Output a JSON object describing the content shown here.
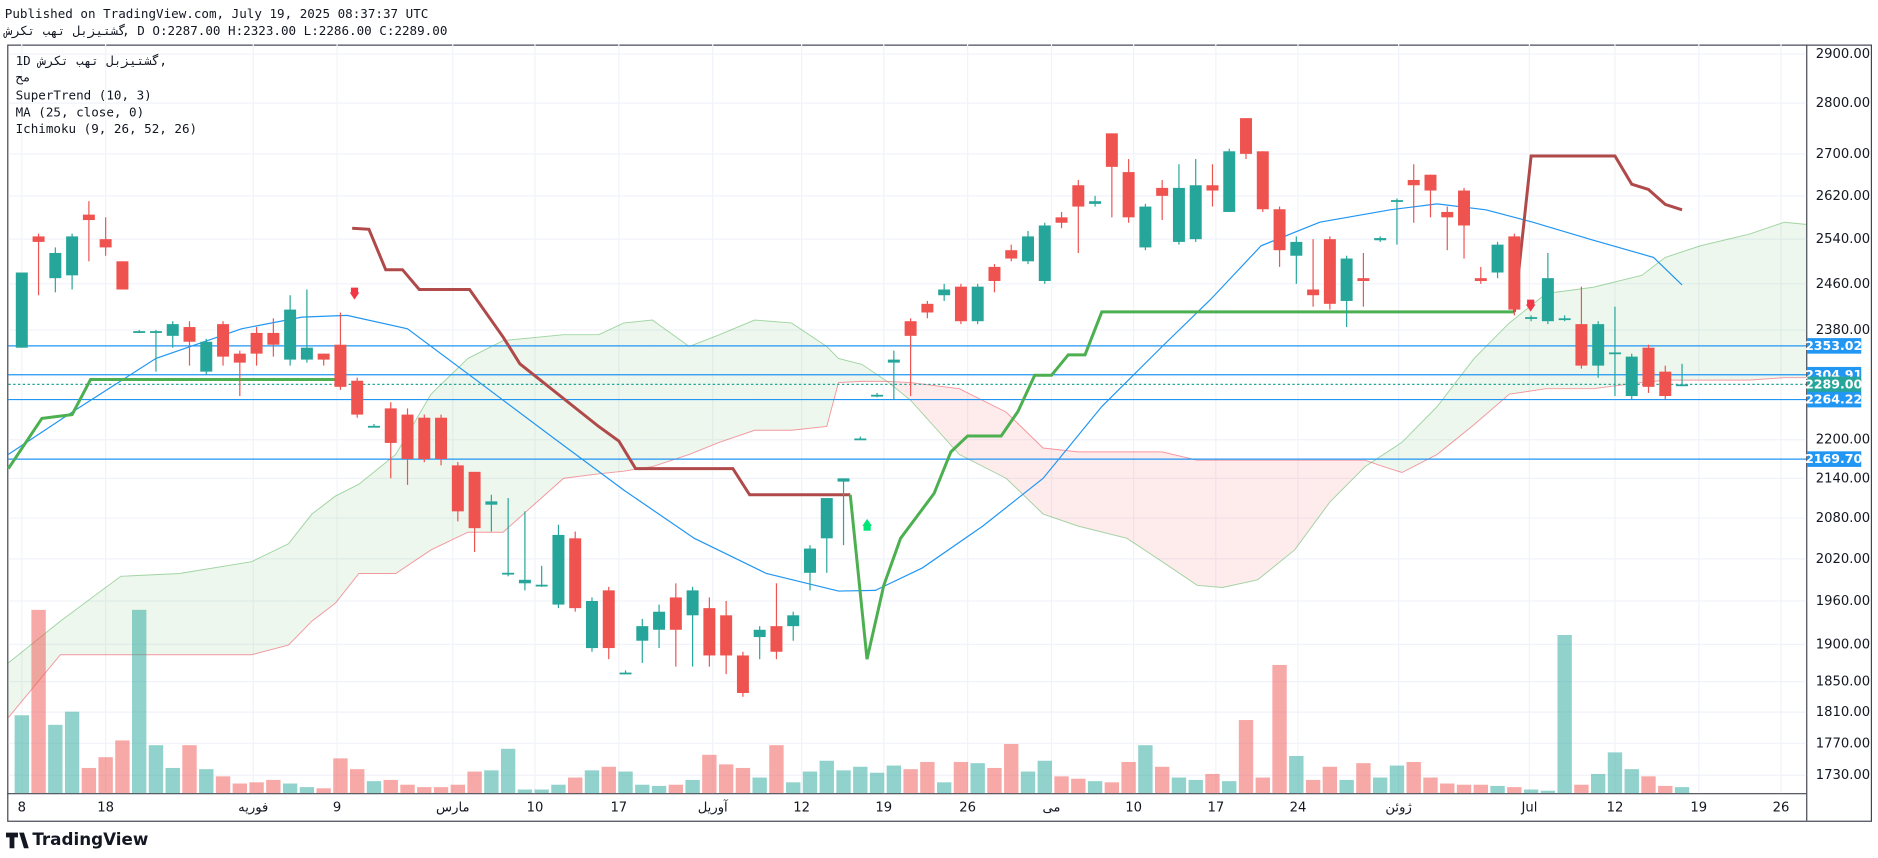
{
  "header": {
    "published": "Published on TradingView.com, July 19, 2025 08:37:37 UTC",
    "symbol": "گشتیزبل تهب تکرش",
    "ohlc": ", D O:2287.00 H:2323.00 L:2286.00 C:2289.00"
  },
  "legend": [
    "1D",
    "گشتیزبل تهب تکرش,",
    "مح",
    "SuperTrend (10, 3)",
    "MA (25, close, 0)",
    "Ichimoku (9, 26, 52, 26)"
  ],
  "footer": "TradingView",
  "chart_data": {
    "type": "candlestick",
    "log_scale": true,
    "grid": true,
    "up_color": "#26a69a",
    "down_color": "#ef5350",
    "xlim": [
      -0.8,
      106.4
    ],
    "ylim": [
      1708,
      2920
    ],
    "xticks": [
      {
        "value": 0,
        "label": "8"
      },
      {
        "value": 5,
        "label": "18"
      },
      {
        "value": 13.8,
        "label": "فوریه"
      },
      {
        "value": 18.8,
        "label": "9"
      },
      {
        "value": 25.7,
        "label": "مارس"
      },
      {
        "value": 30.6,
        "label": "10"
      },
      {
        "value": 35.6,
        "label": "17"
      },
      {
        "value": 41.2,
        "label": "آوریل"
      },
      {
        "value": 46.5,
        "label": "12"
      },
      {
        "value": 51.4,
        "label": "19"
      },
      {
        "value": 56.4,
        "label": "26"
      },
      {
        "value": 61.4,
        "label": "می"
      },
      {
        "value": 66.3,
        "label": "10"
      },
      {
        "value": 71.2,
        "label": "17"
      },
      {
        "value": 76.1,
        "label": "24"
      },
      {
        "value": 82.1,
        "label": "ژوئن"
      },
      {
        "value": 89.9,
        "label": "Jul"
      },
      {
        "value": 95,
        "label": "12"
      },
      {
        "value": 100,
        "label": "19"
      },
      {
        "value": 104.9,
        "label": "26"
      }
    ],
    "yticks": [
      {
        "value": 2900,
        "label": "2900.00"
      },
      {
        "value": 2800,
        "label": "2800.00"
      },
      {
        "value": 2700,
        "label": "2700.00"
      },
      {
        "value": 2620,
        "label": "2620.00"
      },
      {
        "value": 2540,
        "label": "2540.00"
      },
      {
        "value": 2460,
        "label": "2460.00"
      },
      {
        "value": 2380,
        "label": "2380.00"
      },
      {
        "value": 2200,
        "label": "2200.00"
      },
      {
        "value": 2140,
        "label": "2140.00"
      },
      {
        "value": 2080,
        "label": "2080.00"
      },
      {
        "value": 2020,
        "label": "2020.00"
      },
      {
        "value": 1960,
        "label": "1960.00"
      },
      {
        "value": 1900,
        "label": "1900.00"
      },
      {
        "value": 1850,
        "label": "1850.00"
      },
      {
        "value": 1810,
        "label": "1810.00"
      },
      {
        "value": 1770,
        "label": "1770.00"
      },
      {
        "value": 1730,
        "label": "1730.00"
      }
    ],
    "open": [
      2350,
      2545,
      2470,
      2475,
      2585,
      2540,
      2500,
      2375,
      2375,
      2370,
      2385,
      2310,
      2390,
      2340,
      2375,
      2375,
      2330,
      2330,
      2340,
      2355,
      2295,
      2220,
      2250,
      2240,
      2235,
      2235,
      2160,
      2150,
      2100,
      1998,
      1985,
      1982,
      1955,
      2050,
      1895,
      1975,
      1860,
      1905,
      1920,
      1965,
      1940,
      1950,
      1940,
      1885,
      1910,
      1925,
      1925,
      2000,
      2050,
      2135,
      2200,
      2270,
      2325,
      2395,
      2425,
      2440,
      2455,
      2395,
      2490,
      2520,
      2500,
      2465,
      2580,
      2640,
      2605,
      2740,
      2665,
      2525,
      2635,
      2535,
      2540,
      2640,
      2590,
      2770,
      2705,
      2595,
      2510,
      2450,
      2540,
      2430,
      2470,
      2538,
      2610,
      2650,
      2660,
      2590,
      2630,
      2470,
      2480,
      2545,
      2400,
      2395,
      2398,
      2390,
      2320,
      2340,
      2270,
      2350,
      2310,
      2287
    ],
    "high": [
      2480,
      2550,
      2525,
      2550,
      2610,
      2580,
      2500,
      2380,
      2380,
      2395,
      2395,
      2365,
      2395,
      2345,
      2385,
      2400,
      2440,
      2450,
      2340,
      2410,
      2300,
      2225,
      2260,
      2250,
      2240,
      2240,
      2165,
      2150,
      2115,
      2110,
      2090,
      2010,
      2070,
      2060,
      1965,
      1980,
      1865,
      1935,
      1955,
      1985,
      1980,
      1965,
      1960,
      1890,
      1925,
      1985,
      1945,
      2040,
      2110,
      2140,
      2205,
      2275,
      2345,
      2400,
      2430,
      2460,
      2460,
      2460,
      2495,
      2530,
      2555,
      2570,
      2590,
      2650,
      2620,
      2740,
      2690,
      2605,
      2650,
      2680,
      2690,
      2680,
      2710,
      2770,
      2705,
      2600,
      2545,
      2540,
      2545,
      2510,
      2515,
      2545,
      2615,
      2680,
      2660,
      2600,
      2635,
      2490,
      2535,
      2550,
      2405,
      2515,
      2405,
      2455,
      2395,
      2420,
      2340,
      2355,
      2320,
      2323
    ],
    "low": [
      2350,
      2440,
      2445,
      2450,
      2500,
      2510,
      2450,
      2375,
      2310,
      2350,
      2320,
      2305,
      2320,
      2270,
      2320,
      2335,
      2320,
      2325,
      2320,
      2280,
      2235,
      2220,
      2140,
      2130,
      2165,
      2160,
      2075,
      2030,
      2060,
      1995,
      1975,
      1980,
      1950,
      1945,
      1890,
      1880,
      1860,
      1875,
      1895,
      1870,
      1870,
      1870,
      1860,
      1830,
      1880,
      1880,
      1905,
      1975,
      2000,
      2040,
      2200,
      2268,
      2265,
      2270,
      2400,
      2430,
      2390,
      2390,
      2445,
      2500,
      2495,
      2460,
      2560,
      2515,
      2600,
      2580,
      2570,
      2520,
      2575,
      2530,
      2535,
      2600,
      2590,
      2690,
      2590,
      2490,
      2460,
      2420,
      2415,
      2385,
      2420,
      2535,
      2530,
      2570,
      2580,
      2520,
      2505,
      2460,
      2470,
      2405,
      2395,
      2390,
      2395,
      2315,
      2300,
      2270,
      2265,
      2275,
      2265,
      2286
    ],
    "close": [
      2480,
      2535,
      2515,
      2545,
      2575,
      2525,
      2450,
      2378,
      2378,
      2390,
      2360,
      2360,
      2335,
      2325,
      2340,
      2355,
      2415,
      2350,
      2330,
      2285,
      2240,
      2222,
      2195,
      2170,
      2170,
      2170,
      2090,
      2065,
      2105,
      2000,
      1990,
      1983,
      2055,
      1950,
      1960,
      1895,
      1862,
      1925,
      1945,
      1920,
      1975,
      1885,
      1885,
      1835,
      1920,
      1890,
      1940,
      2035,
      2110,
      2140,
      2202,
      2272,
      2330,
      2370,
      2410,
      2450,
      2395,
      2455,
      2465,
      2505,
      2545,
      2565,
      2570,
      2600,
      2610,
      2675,
      2580,
      2600,
      2620,
      2635,
      2640,
      2630,
      2705,
      2700,
      2595,
      2520,
      2535,
      2440,
      2425,
      2505,
      2465,
      2542,
      2612,
      2640,
      2630,
      2580,
      2565,
      2465,
      2530,
      2415,
      2402,
      2470,
      2400,
      2320,
      2390,
      2342,
      2335,
      2285,
      2270,
      2289
    ],
    "volume": [
      65,
      153,
      57,
      68,
      21,
      30,
      44,
      153,
      40,
      21,
      40,
      20,
      14,
      8,
      9,
      11,
      8,
      5,
      4,
      29,
      20,
      10,
      11,
      7,
      5,
      5,
      7,
      18,
      19,
      37,
      3,
      3,
      7,
      13,
      19,
      22,
      18,
      7,
      6,
      7,
      11,
      32,
      24,
      21,
      13,
      40,
      9,
      18,
      27,
      19,
      22,
      17,
      23,
      20,
      26,
      9,
      26,
      25,
      21,
      41,
      18,
      27,
      14,
      12,
      10,
      9,
      26,
      40,
      22,
      13,
      11,
      16,
      10,
      61,
      13,
      107,
      31,
      11,
      22,
      11,
      25,
      13,
      23,
      26,
      13,
      8,
      7,
      7,
      6,
      5,
      3,
      2,
      132,
      7,
      16,
      34,
      20,
      14,
      6,
      5
    ],
    "ma": {
      "color": "#2196f3",
      "x": [
        -0.8,
        3,
        8,
        13.1,
        16.7,
        19.4,
        23,
        27.3,
        31.6,
        35.9,
        40.1,
        44.4,
        48.7,
        50.9,
        53.7,
        57.3,
        60.9,
        64.4,
        68,
        70.9,
        73.9,
        77.4,
        81.6,
        84.4,
        87.3,
        90.1,
        93.6,
        97.3,
        99
      ],
      "values": [
        2177,
        2244,
        2332,
        2382,
        2402,
        2405,
        2382,
        2292,
        2205,
        2122,
        2050,
        1999,
        1974,
        1975,
        2007,
        2068,
        2140,
        2253,
        2352,
        2433,
        2528,
        2571,
        2594,
        2605,
        2594,
        2571,
        2539,
        2507,
        2458
      ]
    },
    "supertrend": [
      {
        "color": "#4caf50",
        "x": [
          -0.8,
          1.2,
          3,
          4.1,
          18.8
        ],
        "values": [
          2155,
          2234,
          2240,
          2297,
          2297
        ]
      },
      {
        "color": "#b04a4a",
        "x": [
          19.7,
          20.7,
          21.7,
          22.7,
          23.7,
          26.7,
          28.7,
          29.7,
          34.4,
          35.6,
          36.6,
          42.4,
          43.4,
          49.4
        ],
        "values": [
          2560,
          2558,
          2485,
          2485,
          2450,
          2450,
          2368,
          2323,
          2221,
          2198,
          2155,
          2155,
          2115,
          2115
        ]
      },
      {
        "color": "#4caf50",
        "x": [
          49.4,
          50.4,
          51.4,
          52.4,
          54.4,
          55.4,
          56.4,
          58.4,
          59.4,
          60.4,
          61.4,
          62.4,
          63.4,
          64.4,
          89
        ],
        "values": [
          2115,
          1880,
          1982,
          2050,
          2117,
          2181,
          2206,
          2206,
          2245,
          2304,
          2304,
          2338,
          2338,
          2411,
          2411
        ]
      },
      {
        "color": "#b04a4a",
        "x": [
          89,
          90,
          95,
          96,
          97,
          98,
          99
        ],
        "values": [
          2411,
          2696,
          2696,
          2642,
          2632,
          2604,
          2594
        ]
      }
    ],
    "ichimoku": {
      "above_color": "#4caf50",
      "below_color": "#f23645",
      "x": [
        -0.8,
        2.3,
        5.9,
        9.4,
        13.7,
        15.9,
        17.3,
        18.7,
        20.1,
        22.3,
        24.4,
        26.6,
        28.7,
        32.3,
        34.4,
        35.9,
        37.6,
        39.8,
        41.6,
        43.7,
        45.9,
        48,
        48.7,
        50.1,
        51.6,
        53,
        55.9,
        58.7,
        60.9,
        63,
        65.9,
        68,
        70.1,
        71.6,
        73.7,
        75.9,
        78,
        80.1,
        81.2,
        82.3,
        84.4,
        86.6,
        88.7,
        90.9,
        93.7,
        96.6,
        98,
        100.1,
        103,
        105.1,
        106.4
      ],
      "span_a": [
        1875,
        1932,
        1995,
        1999,
        2016,
        2042,
        2086,
        2113,
        2131,
        2177,
        2273,
        2332,
        2362,
        2372,
        2372,
        2392,
        2397,
        2352,
        2372,
        2397,
        2392,
        2352,
        2332,
        2322,
        2294,
        2263,
        2177,
        2140,
        2086,
        2068,
        2050,
        2016,
        1982,
        1979,
        1990,
        2033,
        2104,
        2158,
        2177,
        2196,
        2253,
        2332,
        2392,
        2443,
        2454,
        2475,
        2507,
        2528,
        2549,
        2571,
        2567
      ],
      "span_b": [
        1803,
        1886,
        1886,
        1886,
        1886,
        1899,
        1932,
        1957,
        1999,
        1999,
        2033,
        2059,
        2059,
        2140,
        2147,
        2151,
        2158,
        2177,
        2196,
        2215,
        2215,
        2221,
        2292,
        2294,
        2294,
        2292,
        2282,
        2244,
        2187,
        2181,
        2181,
        2181,
        2168,
        2168,
        2168,
        2168,
        2168,
        2168,
        2158,
        2149,
        2177,
        2224,
        2273,
        2282,
        2282,
        2292,
        2296,
        2296,
        2296,
        2300,
        2300
      ]
    },
    "levels": [
      {
        "price": 2353.02,
        "color": "#2196f3"
      },
      {
        "price": 2304.91,
        "color": "#2196f3"
      },
      {
        "price": {
          "value": 2289,
          "label": "2289.00"
        },
        "color": "#26a69a",
        "dotted": true
      },
      {
        "price": 2264.22,
        "color": "#2196f3"
      },
      {
        "price": {
          "value": 2169.7,
          "label": "2169.70"
        },
        "color": "#2196f3"
      }
    ]
  }
}
